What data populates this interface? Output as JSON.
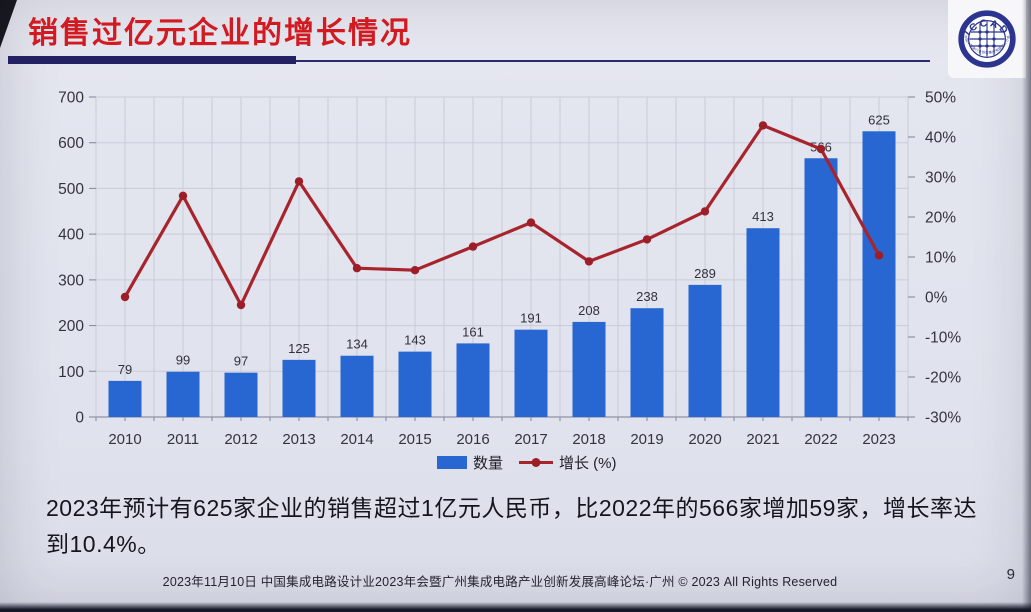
{
  "slide": {
    "title": "销售过亿元企业的增长情况",
    "title_color": "#d21a20",
    "accent_bar_color": "#232064",
    "summary": "2023年预计有625家企业的销售超过1亿元人民币，比2022年的566家增加59家，增长率达到10.4%。",
    "footer": "2023年11月10日 中国集成电路设计业2023年会暨广州集成电路产业创新发展高峰论坛·广州 © 2023 All Rights Reserved",
    "page_number": "9"
  },
  "logo": {
    "text": "ICCAD",
    "arc_text": "中国半导体行业协会集成电路设计分会",
    "color": "#2b3590"
  },
  "chart_data": {
    "type": "bar",
    "subtype": "bar+line combo",
    "categories": [
      "2010",
      "2011",
      "2012",
      "2013",
      "2014",
      "2015",
      "2016",
      "2017",
      "2018",
      "2019",
      "2020",
      "2021",
      "2022",
      "2023"
    ],
    "series": [
      {
        "name": "数量",
        "type": "bar",
        "axis": "left",
        "color": "#2866d2",
        "values": [
          79,
          99,
          97,
          125,
          134,
          143,
          161,
          191,
          208,
          238,
          289,
          413,
          566,
          625
        ]
      },
      {
        "name": "增长 (%)",
        "type": "line",
        "axis": "right",
        "color": "#a8242c",
        "dot_color": "#9c1f28",
        "values": [
          0,
          25.3,
          -2.0,
          28.9,
          7.2,
          6.7,
          12.6,
          18.6,
          8.9,
          14.4,
          21.4,
          42.9,
          37.0,
          10.4
        ]
      }
    ],
    "left_axis": {
      "min": 0,
      "max": 700,
      "step": 100,
      "ticks": [
        0,
        100,
        200,
        300,
        400,
        500,
        600,
        700
      ]
    },
    "right_axis": {
      "min": -30,
      "max": 50,
      "step": 10,
      "suffix": "%",
      "ticks": [
        "50%",
        "40%",
        "30%",
        "20%",
        "10%",
        "0%",
        "-10%",
        "-20%",
        "-30%"
      ]
    },
    "grid": true,
    "legend_position": "bottom",
    "title": "",
    "xlabel": "",
    "ylabel": ""
  }
}
